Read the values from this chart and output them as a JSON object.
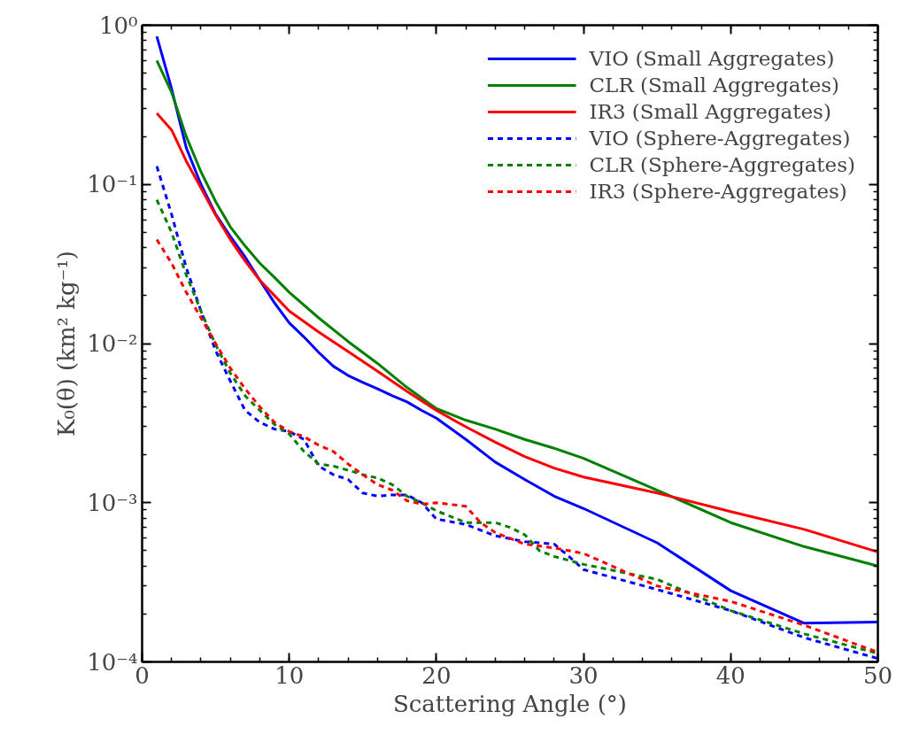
{
  "chart_data": {
    "type": "line",
    "xlabel": "Scattering Angle (°)",
    "ylabel": "K₀(θ) (km² kg⁻¹)",
    "log": "y",
    "grid": false,
    "legend": "top right",
    "xlim": [
      0,
      50
    ],
    "xticks": [
      0,
      10,
      20,
      30,
      40,
      50
    ],
    "ylim": [
      0.0001,
      1
    ],
    "yticks": [
      {
        "value": 0.0001,
        "label": "10⁻⁴"
      },
      {
        "value": 0.001,
        "label": "10⁻³"
      },
      {
        "value": 0.01,
        "label": "10⁻²"
      },
      {
        "value": 0.1,
        "label": "10⁻¹"
      },
      {
        "value": 1,
        "label": "10⁰"
      }
    ],
    "x": [
      1,
      2,
      3,
      4,
      5,
      6,
      7,
      8,
      9,
      10,
      11,
      12,
      13,
      14,
      15,
      16,
      17,
      18,
      19,
      20,
      22,
      24,
      26,
      28,
      30,
      35,
      40,
      45,
      50
    ],
    "series": [
      {
        "name": "VIO (Small Aggregates)",
        "color": "#0000ff",
        "line_style": "solid",
        "values": [
          0.85,
          0.4,
          0.17,
          0.1,
          0.065,
          0.047,
          0.035,
          0.025,
          0.018,
          0.0135,
          0.011,
          0.0088,
          0.0072,
          0.0063,
          0.0057,
          0.0052,
          0.0047,
          0.0043,
          0.0038,
          0.0034,
          0.0025,
          0.0018,
          0.0014,
          0.0011,
          0.00092,
          0.00056,
          0.00028,
          0.000175,
          0.000178
        ]
      },
      {
        "name": "CLR (Small Aggregates)",
        "color": "#008000",
        "line_style": "solid",
        "x": [
          1,
          2,
          3,
          4,
          5,
          6,
          7,
          8,
          9,
          10,
          12,
          14,
          16,
          18,
          20,
          22,
          24,
          26,
          28,
          30,
          35,
          40,
          45,
          50
        ],
        "values": [
          0.6,
          0.38,
          0.2,
          0.12,
          0.078,
          0.054,
          0.041,
          0.032,
          0.026,
          0.021,
          0.0145,
          0.0103,
          0.0075,
          0.0053,
          0.0039,
          0.0033,
          0.0029,
          0.0025,
          0.0022,
          0.0019,
          0.0012,
          0.00075,
          0.00053,
          0.0004
        ]
      },
      {
        "name": "IR3 (Small Aggregates)",
        "color": "#ff0000",
        "line_style": "solid",
        "x": [
          1,
          2,
          3,
          4,
          5,
          6,
          7,
          8,
          9,
          10,
          12,
          14,
          16,
          18,
          20,
          22,
          24,
          26,
          28,
          30,
          35,
          40,
          45,
          50
        ],
        "values": [
          0.28,
          0.22,
          0.14,
          0.095,
          0.064,
          0.045,
          0.033,
          0.025,
          0.02,
          0.016,
          0.0118,
          0.0089,
          0.0067,
          0.005,
          0.0038,
          0.003,
          0.0024,
          0.00195,
          0.00165,
          0.00145,
          0.00115,
          0.00088,
          0.00068,
          0.00049
        ]
      },
      {
        "name": "VIO (Sphere-Aggregates)",
        "color": "#0000ff",
        "line_style": "dashed",
        "x": [
          1,
          2,
          3,
          4,
          5,
          6,
          7,
          8,
          9,
          10,
          11,
          12,
          13,
          14,
          15,
          16,
          17,
          18,
          19,
          20,
          22,
          24,
          26,
          28,
          29,
          30,
          35,
          40,
          45,
          50
        ],
        "values": [
          0.13,
          0.065,
          0.03,
          0.016,
          0.009,
          0.0058,
          0.0038,
          0.0032,
          0.0029,
          0.0028,
          0.0025,
          0.0017,
          0.0015,
          0.0014,
          0.00115,
          0.0011,
          0.00112,
          0.00112,
          0.001,
          0.00079,
          0.00073,
          0.00062,
          0.00057,
          0.00055,
          0.00046,
          0.00038,
          0.000285,
          0.00021,
          0.000142,
          0.000105
        ]
      },
      {
        "name": "CLR (Sphere-Aggregates)",
        "color": "#008000",
        "line_style": "dashed",
        "x": [
          1,
          2,
          3,
          4,
          5,
          6,
          7,
          8,
          9,
          10,
          11,
          12,
          13,
          14,
          15,
          16,
          17,
          18,
          19,
          20,
          22,
          24,
          25,
          26,
          27,
          28,
          30,
          35,
          40,
          45,
          50
        ],
        "values": [
          0.08,
          0.05,
          0.027,
          0.016,
          0.0098,
          0.0065,
          0.0047,
          0.0038,
          0.0031,
          0.0027,
          0.0021,
          0.00175,
          0.0017,
          0.0016,
          0.0015,
          0.00143,
          0.0013,
          0.0011,
          0.001,
          0.00089,
          0.00075,
          0.00075,
          0.0007,
          0.00063,
          0.0005,
          0.00046,
          0.00041,
          0.00033,
          0.00021,
          0.00015,
          0.000113
        ]
      },
      {
        "name": "IR3 (Sphere-Aggregates)",
        "color": "#ff0000",
        "line_style": "dashed",
        "x": [
          1,
          2,
          3,
          4,
          5,
          6,
          7,
          8,
          9,
          10,
          11,
          12,
          13,
          14,
          15,
          16,
          17,
          18,
          19,
          20,
          22,
          23,
          24,
          26,
          28,
          30,
          35,
          40,
          45,
          50
        ],
        "values": [
          0.045,
          0.032,
          0.021,
          0.0145,
          0.01,
          0.007,
          0.0052,
          0.004,
          0.0032,
          0.0028,
          0.0026,
          0.0023,
          0.0021,
          0.00175,
          0.0015,
          0.0013,
          0.0012,
          0.00103,
          0.00098,
          0.001,
          0.00095,
          0.00075,
          0.00065,
          0.00055,
          0.00052,
          0.00048,
          0.0003,
          0.00024,
          0.00017,
          0.000115
        ]
      }
    ]
  }
}
